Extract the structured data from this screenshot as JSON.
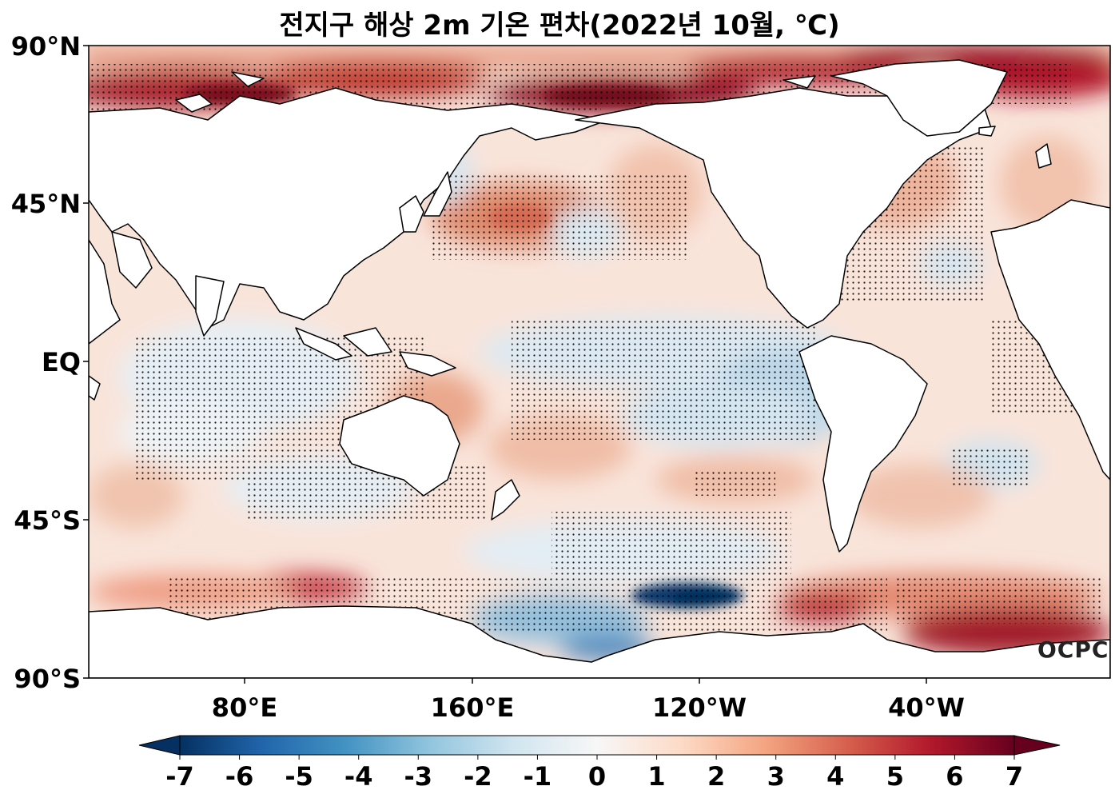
{
  "title": "전지구 해상 2m 기온 편차(2022년 10월, ℃)",
  "logo_text": "OCPC",
  "lat_labels": [
    "90°N",
    "45°N",
    "EQ",
    "45°S",
    "90°S"
  ],
  "lon_labels": [
    "80°E",
    "160°E",
    "120°W",
    "40°W"
  ],
  "colorbar": {
    "ticks": [
      "-7",
      "-6",
      "-5",
      "-4",
      "-3",
      "-2",
      "-1",
      "0",
      "1",
      "2",
      "3",
      "4",
      "5",
      "6",
      "7"
    ],
    "range": [
      -7,
      7
    ],
    "extend": "both",
    "colormap": "RdBu_r",
    "stops": [
      "#053061",
      "#2166ac",
      "#4393c3",
      "#92c5de",
      "#d1e5f0",
      "#f7f7f7",
      "#fddbc7",
      "#f4a582",
      "#d6604d",
      "#b2182b",
      "#67001f"
    ]
  },
  "map": {
    "projection": "equirectangular, centered at 180°",
    "stippling": "dots mark statistically significant anomalies",
    "ocean_background": "#f8e6dd",
    "land_color": "#ffffff"
  }
}
